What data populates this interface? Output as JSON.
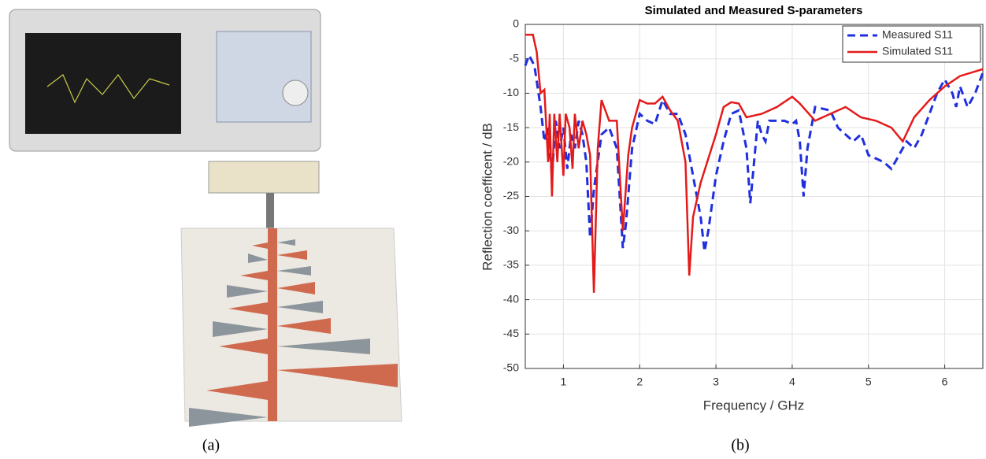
{
  "captions": {
    "a": "(a)",
    "b": "(b)"
  },
  "chart_data": {
    "type": "line",
    "title": "Simulated and Measured S-parameters",
    "x_label": "Frequency / GHz",
    "y_label": "Reflection coefficent / dB",
    "xlim": [
      0.5,
      6.5
    ],
    "ylim": [
      -50,
      0
    ],
    "xticks": [
      1,
      2,
      3,
      4,
      5,
      6
    ],
    "yticks": [
      0,
      -5,
      -10,
      -15,
      -20,
      -25,
      -30,
      -35,
      -40,
      -45,
      -50
    ],
    "grid": true,
    "legend": "northeast",
    "series": [
      {
        "name": "Measured S11",
        "color": "#1f2fe0",
        "dash": true,
        "x": [
          0.5,
          0.55,
          0.62,
          0.7,
          0.75,
          0.8,
          0.85,
          0.9,
          0.95,
          1.0,
          1.05,
          1.1,
          1.15,
          1.2,
          1.25,
          1.3,
          1.35,
          1.4,
          1.5,
          1.6,
          1.7,
          1.78,
          1.82,
          1.9,
          2.0,
          2.1,
          2.2,
          2.3,
          2.4,
          2.5,
          2.6,
          2.7,
          2.8,
          2.85,
          2.9,
          3.0,
          3.1,
          3.2,
          3.3,
          3.4,
          3.45,
          3.5,
          3.55,
          3.6,
          3.65,
          3.7,
          3.9,
          4.0,
          4.05,
          4.1,
          4.15,
          4.2,
          4.3,
          4.5,
          4.6,
          4.8,
          4.9,
          5.0,
          5.1,
          5.2,
          5.3,
          5.4,
          5.5,
          5.6,
          5.7,
          5.8,
          5.9,
          6.0,
          6.1,
          6.15,
          6.2,
          6.3,
          6.4,
          6.5
        ],
        "values": [
          -6,
          -4.5,
          -6,
          -12,
          -17,
          -15,
          -22,
          -14,
          -18,
          -15,
          -21,
          -16,
          -18,
          -14,
          -16,
          -20,
          -31,
          -24,
          -16,
          -15,
          -18,
          -32.5,
          -29,
          -18,
          -13,
          -14,
          -14.5,
          -11,
          -13,
          -13,
          -16,
          -22,
          -28,
          -33,
          -30,
          -22,
          -17,
          -13,
          -12.5,
          -18,
          -26,
          -20,
          -14,
          -16,
          -17,
          -14,
          -14,
          -14.5,
          -14,
          -17,
          -25,
          -18,
          -12,
          -12.5,
          -15,
          -17,
          -16,
          -19,
          -19.5,
          -20,
          -21,
          -19,
          -17,
          -18,
          -16,
          -13,
          -10,
          -8,
          -10,
          -12,
          -9,
          -12,
          -10,
          -7
        ]
      },
      {
        "name": "Simulated S11",
        "color": "#e41a1a",
        "dash": false,
        "x": [
          0.5,
          0.6,
          0.65,
          0.7,
          0.75,
          0.8,
          0.82,
          0.85,
          0.88,
          0.92,
          0.95,
          1.0,
          1.03,
          1.08,
          1.12,
          1.15,
          1.2,
          1.25,
          1.3,
          1.35,
          1.4,
          1.45,
          1.5,
          1.6,
          1.7,
          1.78,
          1.85,
          1.9,
          2.0,
          2.1,
          2.2,
          2.3,
          2.4,
          2.5,
          2.6,
          2.65,
          2.7,
          2.8,
          3.0,
          3.1,
          3.2,
          3.3,
          3.4,
          3.6,
          3.8,
          4.0,
          4.1,
          4.3,
          4.5,
          4.7,
          4.9,
          5.1,
          5.3,
          5.45,
          5.6,
          5.8,
          6.0,
          6.2,
          6.5
        ],
        "values": [
          -1.5,
          -1.5,
          -4,
          -10,
          -9.5,
          -20,
          -13,
          -25,
          -13,
          -20,
          -13,
          -22,
          -13,
          -15,
          -21,
          -13,
          -18,
          -14,
          -16,
          -19,
          -39,
          -18,
          -11,
          -14,
          -14,
          -30,
          -19,
          -15,
          -11,
          -11.5,
          -11.5,
          -10.5,
          -12.5,
          -14,
          -20,
          -36.5,
          -28,
          -23,
          -16,
          -12,
          -11.3,
          -11.5,
          -13.5,
          -13,
          -12,
          -10.5,
          -11.5,
          -14,
          -13,
          -12,
          -13.5,
          -14,
          -15,
          -17,
          -13.5,
          -11,
          -9,
          -7.5,
          -6.5
        ]
      }
    ]
  }
}
